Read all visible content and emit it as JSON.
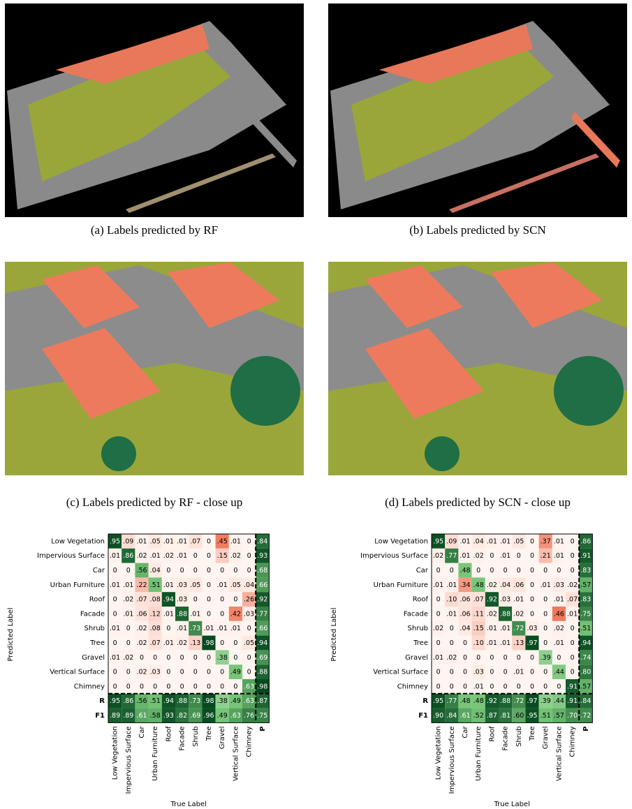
{
  "panels": [
    {
      "caption": "(a) Labels predicted by RF"
    },
    {
      "caption": "(b) Labels predicted by SCN"
    },
    {
      "caption": "(c) Labels predicted by RF - close up"
    },
    {
      "caption": "(d) Labels predicted by SCN - close up"
    }
  ],
  "matrices": [
    {
      "y_label": "Predicted Label",
      "x_label": "True Label",
      "row_labels": [
        "Low Vegetation",
        "Impervious Surface",
        "Car",
        "Urban Furniture",
        "Roof",
        "Facade",
        "Shrub",
        "Tree",
        "Gravel",
        "Vertical Surface",
        "Chimney",
        "R",
        "F1"
      ],
      "col_labels": [
        "Low Vegetation",
        "Impervious Surface",
        "Car",
        "Urban Furniture",
        "Roof",
        "Facade",
        "Shrub",
        "Tree",
        "Gravel",
        "Vertical Surface",
        "Chimney",
        "P"
      ],
      "rows": [
        [
          ".95",
          ".09",
          ".01",
          ".05",
          ".01",
          ".01",
          ".07",
          "0",
          ".45",
          ".01",
          "0",
          ".84"
        ],
        [
          ".01",
          ".86",
          ".02",
          ".01",
          ".02",
          ".01",
          "0",
          "0",
          ".15",
          ".02",
          "0",
          ".93"
        ],
        [
          "0",
          "0",
          ".56",
          ".04",
          "0",
          "0",
          "0",
          "0",
          "0",
          "0",
          "0",
          ".68"
        ],
        [
          ".01",
          ".01",
          ".22",
          ".51",
          ".01",
          ".03",
          ".05",
          "0",
          ".01",
          ".05",
          ".04",
          ".66"
        ],
        [
          "0",
          ".02",
          ".07",
          ".08",
          ".94",
          ".03",
          "0",
          "0",
          "0",
          "0",
          ".26",
          ".92"
        ],
        [
          "0",
          ".01",
          ".06",
          ".12",
          ".01",
          ".88",
          ".01",
          "0",
          "0",
          ".42",
          ".03",
          ".77"
        ],
        [
          ".01",
          "0",
          ".02",
          ".08",
          "0",
          ".01",
          ".73",
          ".01",
          ".01",
          ".01",
          "0",
          ".66"
        ],
        [
          "0",
          "0",
          ".02",
          ".07",
          ".01",
          ".02",
          ".13",
          ".98",
          "0",
          "0",
          ".05",
          ".94"
        ],
        [
          ".01",
          ".02",
          "0",
          "0",
          "0",
          "0",
          "0",
          "0",
          ".38",
          "0",
          "0",
          ".69"
        ],
        [
          "0",
          "0",
          ".02",
          ".03",
          "0",
          "0",
          "0",
          "0",
          "0",
          ".49",
          "0",
          ".88"
        ],
        [
          "0",
          "0",
          "0",
          "0",
          "0",
          "0",
          "0",
          "0",
          "0",
          "0",
          ".63",
          ".98"
        ],
        [
          ".95",
          ".86",
          ".56",
          ".51",
          ".94",
          ".88",
          ".73",
          ".98",
          ".38",
          ".49",
          ".63",
          ".87"
        ],
        [
          ".89",
          ".89",
          ".61",
          ".58",
          ".93",
          ".82",
          ".69",
          ".96",
          ".49",
          ".63",
          ".76",
          ".75"
        ]
      ]
    },
    {
      "y_label": "Predicted Label",
      "x_label": "True Label",
      "row_labels": [
        "Low Vegetation",
        "Impervious Surface",
        "Car",
        "Urban Furniture",
        "Roof",
        "Facade",
        "Shrub",
        "Tree",
        "Gravel",
        "Vertical Surface",
        "Chimney",
        "R",
        "F1"
      ],
      "col_labels": [
        "Low Vegetation",
        "Impervious Surface",
        "Car",
        "Urban Furniture",
        "Roof",
        "Facade",
        "Shrub",
        "Tree",
        "Gravel",
        "Vertical Surface",
        "Chimney",
        "P"
      ],
      "rows": [
        [
          ".95",
          ".09",
          ".01",
          ".04",
          ".01",
          ".01",
          ".05",
          "0",
          ".37",
          ".01",
          "0",
          ".86"
        ],
        [
          ".02",
          ".77",
          ".01",
          ".02",
          "0",
          ".01",
          "0",
          "0",
          ".21",
          ".01",
          "0",
          ".91"
        ],
        [
          "0",
          "0",
          ".48",
          "0",
          "0",
          "0",
          "0",
          "0",
          "0",
          "0",
          "0",
          ".83"
        ],
        [
          ".01",
          ".01",
          ".34",
          ".48",
          ".02",
          ".04",
          ".06",
          "0",
          ".01",
          ".03",
          ".02",
          ".57"
        ],
        [
          "0",
          ".10",
          ".06",
          ".07",
          ".92",
          ".03",
          ".01",
          "0",
          "0",
          ".01",
          ".07",
          ".83"
        ],
        [
          "0",
          ".01",
          ".06",
          ".11",
          ".02",
          ".88",
          ".02",
          "0",
          "0",
          ".46",
          ".01",
          ".75"
        ],
        [
          ".02",
          "0",
          ".04",
          ".15",
          ".01",
          ".01",
          ".72",
          ".03",
          "0",
          ".02",
          "0",
          ".51"
        ],
        [
          "0",
          "0",
          "0",
          ".10",
          ".01",
          ".01",
          ".13",
          ".97",
          "0",
          ".01",
          "0",
          ".94"
        ],
        [
          ".01",
          ".02",
          "0",
          "0",
          "0",
          "0",
          "0",
          "0",
          ".39",
          "0",
          "0",
          ".74"
        ],
        [
          "0",
          "0",
          "0",
          ".03",
          "0",
          "0",
          ".01",
          "0",
          "0",
          ".44",
          "0",
          ".80"
        ],
        [
          "0",
          "0",
          "0",
          ".01",
          "0",
          "0",
          "0",
          "0",
          "0",
          "0",
          ".91",
          ".57"
        ],
        [
          ".95",
          ".77",
          ".48",
          ".48",
          ".92",
          ".88",
          ".72",
          ".97",
          ".39",
          ".44",
          ".91",
          ".84"
        ],
        [
          ".90",
          ".84",
          ".61",
          ".52",
          ".87",
          ".81",
          ".60",
          ".95",
          ".51",
          ".57",
          ".70",
          ".72"
        ]
      ]
    }
  ]
}
